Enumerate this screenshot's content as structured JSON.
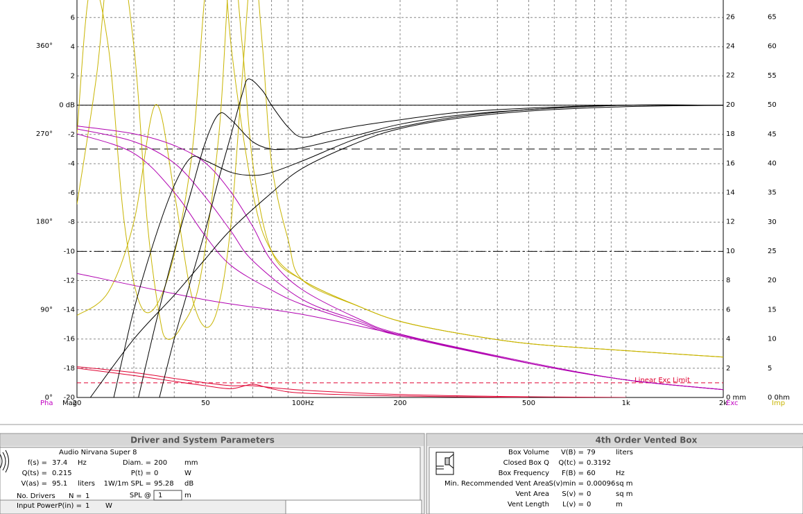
{
  "chart_data": {
    "type": "line",
    "xscale": "log",
    "xlim": [
      20,
      2000
    ],
    "xticks": [
      20,
      50,
      {
        "value": 100,
        "label": "100Hz"
      },
      200,
      500,
      {
        "value": 1000,
        "label": "1k"
      },
      {
        "value": 2000,
        "label": "2k"
      }
    ],
    "xgrid": [
      30,
      40,
      60,
      70,
      80,
      90,
      300,
      400,
      600,
      700,
      800,
      900
    ],
    "grid": true,
    "axes": {
      "mag": {
        "label": "Mag",
        "color": "#000000",
        "lim": [
          -20,
          7.2
        ],
        "ticks": [
          -20,
          -18,
          -16,
          -14,
          -12,
          -10,
          -8,
          -6,
          -4,
          -2,
          {
            "value": 0,
            "label": "0 dB"
          },
          2,
          4,
          6
        ]
      },
      "phase": {
        "label": "Pha",
        "color": "#c000c0",
        "lim": [
          0,
          407
        ],
        "ticks": [
          {
            "value": 0,
            "label": "0°"
          },
          {
            "value": 90,
            "label": "90°"
          },
          {
            "value": 180,
            "label": "180°"
          },
          {
            "value": 270,
            "label": "270°"
          },
          {
            "value": 360,
            "label": "360°"
          }
        ]
      },
      "exc": {
        "label": "Exc",
        "color": "#c000c0",
        "lim": [
          0,
          27.15
        ],
        "ticks": [
          {
            "value": 0,
            "label": "0 mm"
          },
          2,
          4,
          6,
          8,
          10,
          12,
          14,
          16,
          18,
          20,
          22,
          24,
          26
        ]
      },
      "imp": {
        "label": "Imp",
        "color": "#c8b400",
        "lim": [
          0,
          67.9
        ],
        "ticks": [
          {
            "value": 0,
            "label": "0 0hm"
          },
          5,
          10,
          15,
          20,
          25,
          30,
          35,
          40,
          45,
          50,
          55,
          60,
          65
        ]
      }
    },
    "reference_lines": [
      {
        "axis": "mag",
        "value": 0,
        "style": "solid",
        "color": "#000000"
      },
      {
        "axis": "mag",
        "value": -3,
        "style": "long-dash",
        "color": "#000000"
      },
      {
        "axis": "mag",
        "value": -10,
        "style": "dash-dot",
        "color": "#000000"
      },
      {
        "axis": "exc",
        "value": 1,
        "style": "dash",
        "color": "#e00030",
        "label": "Linear Exc Limit"
      }
    ],
    "series": [
      {
        "axis": "imp",
        "color": "#c8b400",
        "x": [
          20,
          23,
          26,
          30,
          33,
          36,
          38,
          42,
          48,
          55,
          60,
          65,
          70,
          80,
          100,
          150,
          200,
          300,
          500,
          1000,
          2000
        ],
        "values": [
          33,
          55,
          80,
          60,
          30,
          14,
          10,
          12,
          20,
          45,
          75,
          60,
          40,
          25,
          20,
          15.5,
          13,
          11,
          9.2,
          8,
          6.9
        ]
      },
      {
        "axis": "imp",
        "color": "#c8b400",
        "x": [
          20,
          25,
          30,
          35,
          40,
          45,
          50,
          55,
          60,
          65,
          70,
          75,
          80,
          90,
          100,
          150,
          200,
          300,
          500,
          1000,
          2000
        ],
        "values": [
          14,
          18,
          30,
          50,
          35,
          18,
          12,
          16,
          30,
          55,
          75,
          60,
          40,
          27,
          20,
          15.5,
          13,
          11,
          9.2,
          8,
          6.9
        ]
      },
      {
        "axis": "imp",
        "color": "#c8b400",
        "x": [
          20,
          22,
          25,
          28,
          32,
          38,
          45,
          50,
          55,
          60,
          70,
          80,
          100,
          150,
          200,
          300,
          500,
          1000,
          2000
        ],
        "values": [
          45,
          70,
          60,
          30,
          15,
          20,
          40,
          70,
          85,
          60,
          35,
          25,
          20,
          15.5,
          13,
          11,
          9.2,
          8,
          6.9
        ]
      },
      {
        "axis": "phase",
        "color": "#b000b0",
        "x": [
          20,
          30,
          40,
          50,
          60,
          70,
          80,
          100,
          150,
          200,
          500,
          1000,
          2000
        ],
        "values": [
          278,
          270,
          258,
          240,
          210,
          175,
          140,
          110,
          80,
          65,
          35,
          18,
          8
        ]
      },
      {
        "axis": "phase",
        "color": "#b000b0",
        "x": [
          20,
          30,
          40,
          50,
          60,
          70,
          100,
          150,
          200,
          500,
          1000,
          2000
        ],
        "values": [
          275,
          262,
          240,
          205,
          170,
          140,
          100,
          78,
          64,
          35,
          18,
          8
        ]
      },
      {
        "axis": "phase",
        "color": "#b000b0",
        "x": [
          20,
          30,
          40,
          50,
          60,
          80,
          100,
          150,
          200,
          500,
          1000,
          2000
        ],
        "values": [
          270,
          250,
          210,
          165,
          135,
          110,
          95,
          76,
          63,
          35,
          18,
          8
        ]
      },
      {
        "axis": "phase",
        "color": "#b000b0",
        "x": [
          20,
          50,
          100,
          200,
          500,
          1000,
          2000
        ],
        "values": [
          127,
          100,
          85,
          64,
          36,
          18,
          8
        ]
      },
      {
        "axis": "exc",
        "color": "#e00030",
        "x": [
          20,
          30,
          40,
          50,
          60,
          70,
          100,
          200,
          500,
          1000
        ],
        "values": [
          2.1,
          1.7,
          1.3,
          1.0,
          0.8,
          0.8,
          0.5,
          0.2,
          0.05,
          0
        ]
      },
      {
        "axis": "exc",
        "color": "#e00030",
        "x": [
          20,
          30,
          40,
          50,
          60,
          70,
          80,
          100,
          200,
          500
        ],
        "values": [
          2.0,
          1.5,
          1.1,
          0.8,
          0.6,
          0.9,
          0.6,
          0.3,
          0.1,
          0
        ]
      },
      {
        "axis": "mag",
        "color": "#000000",
        "x": [
          36,
          40,
          45,
          50,
          55,
          60,
          65,
          68,
          75,
          80,
          90,
          100,
          120,
          150,
          200,
          300,
          500,
          1000,
          2000
        ],
        "values": [
          -20,
          -16,
          -12,
          -8.5,
          -5,
          -2,
          0.8,
          1.8,
          1,
          0,
          -1.5,
          -2.2,
          -1.8,
          -1.4,
          -1,
          -0.5,
          -0.2,
          0,
          0
        ]
      },
      {
        "axis": "mag",
        "color": "#000000",
        "x": [
          31,
          35,
          40,
          45,
          50,
          55,
          60,
          70,
          80,
          90,
          100,
          150,
          200,
          300,
          500,
          1000,
          2000
        ],
        "values": [
          -20,
          -15,
          -10,
          -6,
          -2.5,
          -0.6,
          -1,
          -2.5,
          -3,
          -3,
          -2.9,
          -2,
          -1.3,
          -0.7,
          -0.3,
          0,
          0
        ]
      },
      {
        "axis": "mag",
        "color": "#000000",
        "x": [
          26,
          30,
          35,
          40,
          45,
          50,
          60,
          70,
          80,
          100,
          150,
          200,
          300,
          500,
          1000,
          2000
        ],
        "values": [
          -20,
          -14,
          -9,
          -5.5,
          -3.6,
          -3.8,
          -4.6,
          -4.8,
          -4.6,
          -3.8,
          -2.2,
          -1.5,
          -0.8,
          -0.3,
          0,
          0
        ]
      },
      {
        "axis": "mag",
        "color": "#000000",
        "x": [
          22,
          30,
          40,
          50,
          60,
          80,
          100,
          150,
          200,
          300,
          500,
          1000,
          2000
        ],
        "values": [
          -20,
          -16,
          -13,
          -10.5,
          -8.5,
          -6,
          -4.3,
          -2.5,
          -1.6,
          -0.9,
          -0.4,
          -0.1,
          0
        ]
      }
    ]
  },
  "driver_panel": {
    "title": "Driver and System Parameters",
    "driver": "Audio Nirvana Super 8",
    "left": [
      {
        "label": "f(s) =",
        "value": 37.4,
        "unit": "Hz"
      },
      {
        "label": "Q(ts) =",
        "value": 0.215
      },
      {
        "label": "V(as) =",
        "value": 95.1,
        "unit": "liters"
      },
      {
        "caption": "No. Drivers",
        "label": "N =",
        "value": 1
      },
      {
        "caption": "Input Power",
        "label": "P(in) =",
        "value": 1,
        "unit": "W"
      }
    ],
    "middle": [
      {
        "label": "Diam. =",
        "value": 200,
        "unit": "mm"
      },
      {
        "label": "P(t) =",
        "value": 0,
        "unit": "W"
      },
      {
        "label": "1W/1m SPL =",
        "value": 95.28,
        "unit": "dB"
      },
      {
        "label": "SPL @",
        "value": 1,
        "unit": "m"
      }
    ]
  },
  "box_panel": {
    "title": "4th Order Vented Box",
    "rows": [
      {
        "label": "Box Volume",
        "symbol": "V(B) =",
        "value": 79,
        "unit": "liters"
      },
      {
        "label": "Closed Box Q",
        "symbol": "Q(tc) =",
        "value": 0.3192
      },
      {
        "label": "Box Frequency",
        "symbol": "F(B) =",
        "value": 60,
        "unit": "Hz"
      },
      {
        "label": "Min. Recommended Vent Area",
        "symbol": "S(v)min =",
        "value": 0.00096,
        "unit": "sq m"
      },
      {
        "label": "Vent Area",
        "symbol": "S(v) =",
        "value": 0,
        "unit": "sq m"
      },
      {
        "label": "Vent Length",
        "symbol": "L(v) =",
        "value": 0,
        "unit": "m"
      }
    ]
  }
}
